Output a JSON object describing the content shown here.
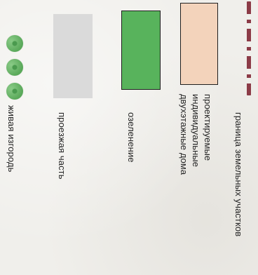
{
  "legend": {
    "hedge": {
      "label": "живая изгородь",
      "symbol_color": "#5aa95a"
    },
    "road": {
      "label": "проезжая часть",
      "fill_color": "#dadada"
    },
    "greenery": {
      "label": "озеленение",
      "fill_color": "#58b35c"
    },
    "houses": {
      "label_lines": [
        "проектируемые",
        "индивидуальные",
        "двухэтажные дома"
      ],
      "fill_color": "#f3d3bb"
    },
    "boundary": {
      "label": "граница земельных участков",
      "line_color": "#8c3b47"
    }
  }
}
